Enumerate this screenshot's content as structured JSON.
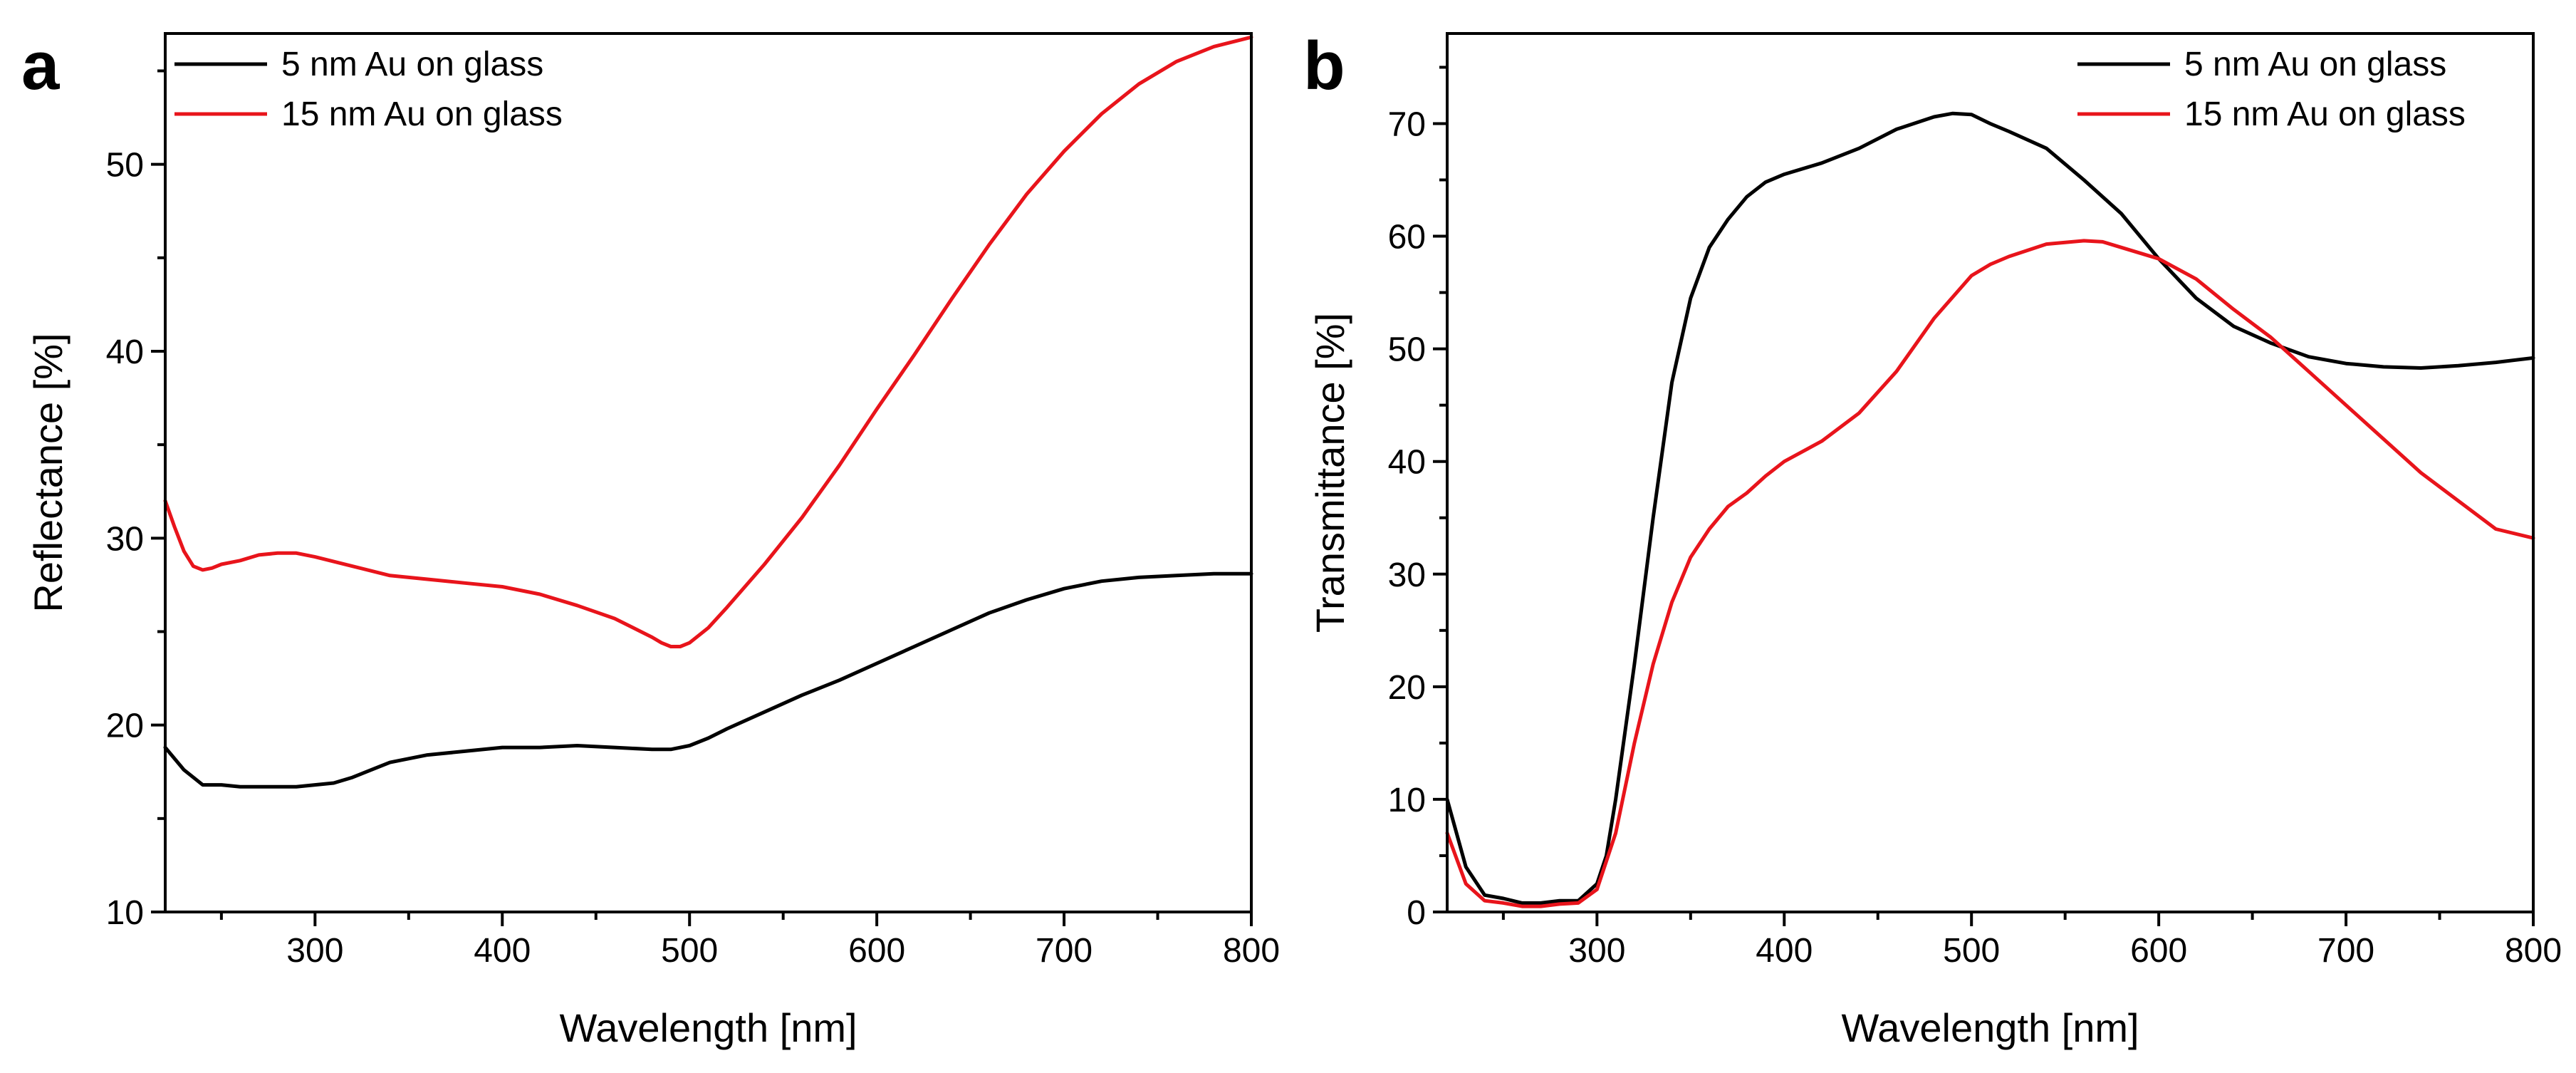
{
  "colors": {
    "black": "#000000",
    "red": "#e8141b"
  },
  "chart_data": [
    {
      "panel_label": "a",
      "type": "line",
      "title": "",
      "xlabel": "Wavelength [nm]",
      "ylabel": "Reflectance [%]",
      "xlim": [
        220,
        800
      ],
      "ylim": [
        10,
        57
      ],
      "xticks": [
        300,
        400,
        500,
        600,
        700,
        800
      ],
      "xminor": [
        250,
        350,
        450,
        550,
        650,
        750
      ],
      "yticks": [
        10,
        20,
        30,
        40,
        50
      ],
      "yminor": [
        15,
        25,
        35,
        45,
        55
      ],
      "grid": false,
      "legend_position": "top-left",
      "series": [
        {
          "name": "5 nm Au on glass",
          "color": "#000000",
          "x": [
            220,
            230,
            240,
            250,
            260,
            270,
            280,
            290,
            300,
            310,
            320,
            340,
            360,
            380,
            400,
            420,
            440,
            460,
            480,
            490,
            500,
            510,
            520,
            540,
            560,
            580,
            600,
            620,
            640,
            660,
            680,
            700,
            720,
            740,
            760,
            780,
            800
          ],
          "y": [
            18.8,
            17.6,
            16.8,
            16.8,
            16.7,
            16.7,
            16.7,
            16.7,
            16.8,
            16.9,
            17.2,
            18.0,
            18.4,
            18.6,
            18.8,
            18.8,
            18.9,
            18.8,
            18.7,
            18.7,
            18.9,
            19.3,
            19.8,
            20.7,
            21.6,
            22.4,
            23.3,
            24.2,
            25.1,
            26.0,
            26.7,
            27.3,
            27.7,
            27.9,
            28.0,
            28.1,
            28.1
          ]
        },
        {
          "name": "15 nm Au on glass",
          "color": "#e8141b",
          "x": [
            220,
            225,
            230,
            235,
            240,
            245,
            250,
            260,
            270,
            280,
            290,
            300,
            320,
            340,
            360,
            380,
            400,
            420,
            440,
            460,
            480,
            485,
            490,
            495,
            500,
            510,
            520,
            540,
            560,
            580,
            600,
            620,
            640,
            660,
            680,
            700,
            720,
            740,
            760,
            780,
            800
          ],
          "y": [
            32.0,
            30.6,
            29.3,
            28.5,
            28.3,
            28.4,
            28.6,
            28.8,
            29.1,
            29.2,
            29.2,
            29.0,
            28.5,
            28.0,
            27.8,
            27.6,
            27.4,
            27.0,
            26.4,
            25.7,
            24.7,
            24.4,
            24.2,
            24.2,
            24.4,
            25.2,
            26.3,
            28.6,
            31.1,
            33.9,
            36.9,
            39.8,
            42.8,
            45.7,
            48.4,
            50.7,
            52.7,
            54.3,
            55.5,
            56.3,
            56.8
          ]
        }
      ]
    },
    {
      "panel_label": "b",
      "type": "line",
      "title": "",
      "xlabel": "Wavelength [nm]",
      "ylabel": "Transmittance [%]",
      "xlim": [
        220,
        800
      ],
      "ylim": [
        0,
        78
      ],
      "xticks": [
        300,
        400,
        500,
        600,
        700,
        800
      ],
      "xminor": [
        250,
        350,
        450,
        550,
        650,
        750
      ],
      "yticks": [
        0,
        10,
        20,
        30,
        40,
        50,
        60,
        70
      ],
      "yminor": [
        5,
        15,
        25,
        35,
        45,
        55,
        65,
        75
      ],
      "grid": false,
      "legend_position": "top-right",
      "series": [
        {
          "name": "5 nm Au on glass",
          "color": "#000000",
          "x": [
            220,
            230,
            240,
            250,
            260,
            270,
            280,
            290,
            300,
            305,
            310,
            320,
            330,
            340,
            350,
            360,
            370,
            380,
            390,
            400,
            420,
            440,
            460,
            480,
            490,
            500,
            510,
            520,
            540,
            560,
            580,
            600,
            620,
            640,
            660,
            680,
            700,
            720,
            740,
            760,
            780,
            800
          ],
          "y": [
            10.0,
            4.0,
            1.5,
            1.2,
            0.8,
            0.8,
            1.0,
            1.0,
            2.5,
            5.0,
            10.0,
            22.0,
            35.0,
            47.0,
            54.5,
            59.0,
            61.5,
            63.5,
            64.8,
            65.5,
            66.5,
            67.8,
            69.5,
            70.6,
            70.9,
            70.8,
            70.0,
            69.3,
            67.8,
            65.0,
            62.0,
            58.0,
            54.5,
            52.0,
            50.5,
            49.3,
            48.7,
            48.4,
            48.3,
            48.5,
            48.8,
            49.2
          ]
        },
        {
          "name": "15 nm Au on glass",
          "color": "#e8141b",
          "x": [
            220,
            230,
            240,
            250,
            260,
            270,
            280,
            290,
            300,
            310,
            320,
            330,
            340,
            350,
            360,
            370,
            380,
            390,
            400,
            420,
            440,
            460,
            480,
            500,
            510,
            520,
            540,
            560,
            570,
            580,
            600,
            620,
            640,
            660,
            680,
            700,
            720,
            740,
            760,
            780,
            800
          ],
          "y": [
            7.0,
            2.5,
            1.0,
            0.8,
            0.5,
            0.5,
            0.7,
            0.8,
            2.0,
            7.0,
            15.0,
            22.0,
            27.5,
            31.5,
            34.0,
            36.0,
            37.2,
            38.7,
            40.0,
            41.8,
            44.3,
            48.0,
            52.7,
            56.5,
            57.5,
            58.2,
            59.3,
            59.6,
            59.5,
            59.0,
            58.0,
            56.2,
            53.5,
            51.0,
            48.0,
            45.0,
            42.0,
            39.0,
            36.5,
            34.0,
            33.2
          ]
        }
      ]
    }
  ]
}
